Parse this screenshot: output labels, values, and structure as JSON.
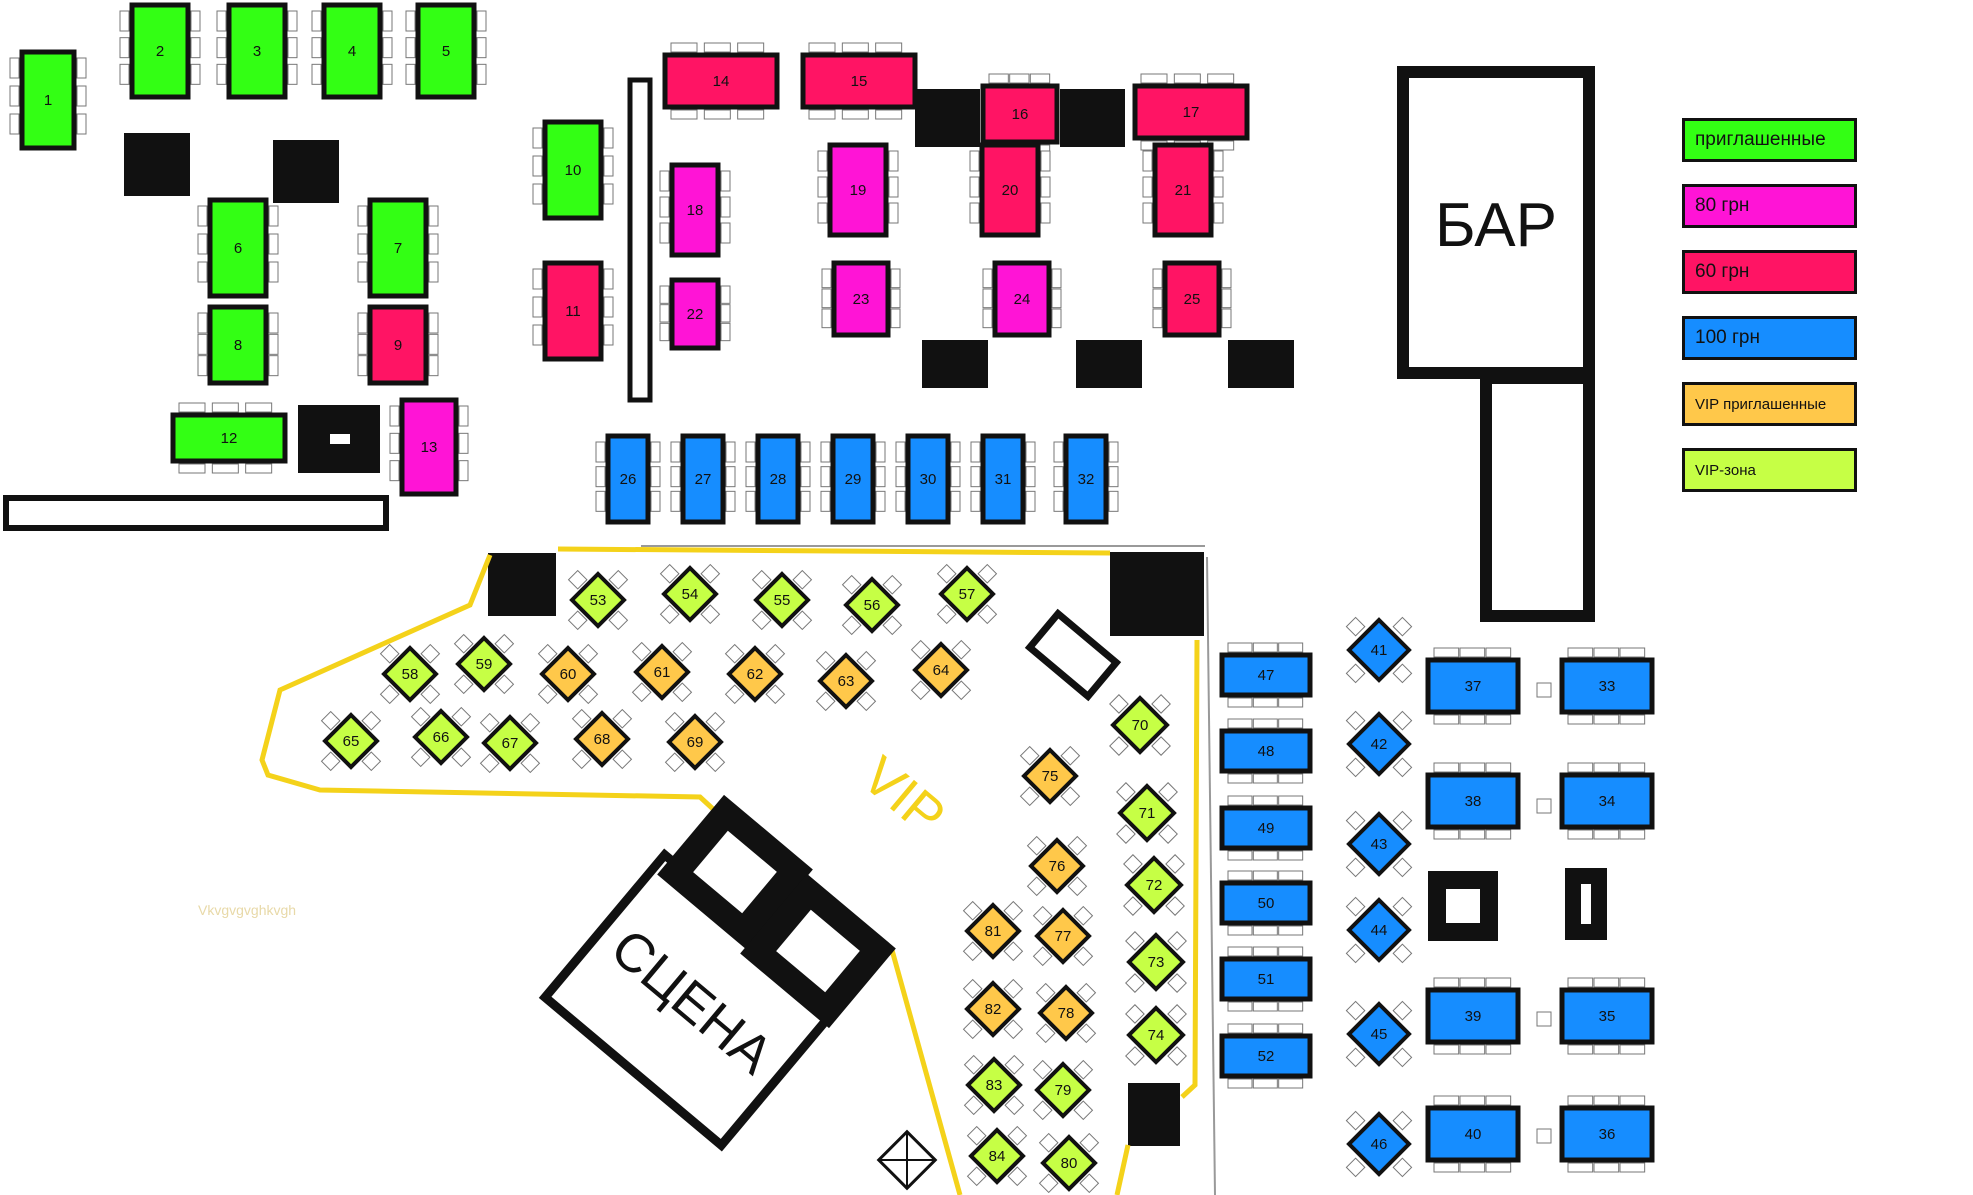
{
  "bar_label": "БАР",
  "stage_label": "СЦЕНА",
  "vip_label": "VIP",
  "watermark": "Vkvgvgvghkvgh",
  "colors": {
    "invited": "#33ff14",
    "price80": "#ff14d6",
    "price60": "#ff1464",
    "price100": "#168dff",
    "vip_invited": "#ffc84a",
    "vip_zone": "#c6ff45",
    "outline": "#111111",
    "vip_border": "#f4d21a"
  },
  "legend": [
    {
      "label": "приглашенные",
      "color": "#33ff14"
    },
    {
      "label": "80 грн",
      "color": "#ff14d6"
    },
    {
      "label": "60 грн",
      "color": "#ff1464"
    },
    {
      "label": "100 грн",
      "color": "#168dff"
    },
    {
      "label": "VIP приглашенные",
      "color": "#ffc84a"
    },
    {
      "label": "VIP-зона",
      "color": "#c6ff45"
    }
  ],
  "tables": [
    {
      "n": "1",
      "cat": "invited"
    },
    {
      "n": "2",
      "cat": "invited"
    },
    {
      "n": "3",
      "cat": "invited"
    },
    {
      "n": "4",
      "cat": "invited"
    },
    {
      "n": "5",
      "cat": "invited"
    },
    {
      "n": "6",
      "cat": "invited"
    },
    {
      "n": "7",
      "cat": "invited"
    },
    {
      "n": "8",
      "cat": "invited"
    },
    {
      "n": "9",
      "cat": "price60"
    },
    {
      "n": "10",
      "cat": "invited"
    },
    {
      "n": "11",
      "cat": "price60"
    },
    {
      "n": "12",
      "cat": "invited"
    },
    {
      "n": "13",
      "cat": "price80"
    },
    {
      "n": "14",
      "cat": "price60"
    },
    {
      "n": "15",
      "cat": "price60"
    },
    {
      "n": "16",
      "cat": "price60"
    },
    {
      "n": "17",
      "cat": "price60"
    },
    {
      "n": "18",
      "cat": "price80"
    },
    {
      "n": "19",
      "cat": "price80"
    },
    {
      "n": "20",
      "cat": "price60"
    },
    {
      "n": "21",
      "cat": "price60"
    },
    {
      "n": "22",
      "cat": "price80"
    },
    {
      "n": "23",
      "cat": "price80"
    },
    {
      "n": "24",
      "cat": "price80"
    },
    {
      "n": "25",
      "cat": "price60"
    },
    {
      "n": "26",
      "cat": "price100"
    },
    {
      "n": "27",
      "cat": "price100"
    },
    {
      "n": "28",
      "cat": "price100"
    },
    {
      "n": "29",
      "cat": "price100"
    },
    {
      "n": "30",
      "cat": "price100"
    },
    {
      "n": "31",
      "cat": "price100"
    },
    {
      "n": "32",
      "cat": "price100"
    },
    {
      "n": "33",
      "cat": "price100"
    },
    {
      "n": "34",
      "cat": "price100"
    },
    {
      "n": "35",
      "cat": "price100"
    },
    {
      "n": "36",
      "cat": "price100"
    },
    {
      "n": "37",
      "cat": "price100"
    },
    {
      "n": "38",
      "cat": "price100"
    },
    {
      "n": "39",
      "cat": "price100"
    },
    {
      "n": "40",
      "cat": "price100"
    },
    {
      "n": "41",
      "cat": "price100"
    },
    {
      "n": "42",
      "cat": "price100"
    },
    {
      "n": "43",
      "cat": "price100"
    },
    {
      "n": "44",
      "cat": "price100"
    },
    {
      "n": "45",
      "cat": "price100"
    },
    {
      "n": "46",
      "cat": "price100"
    },
    {
      "n": "47",
      "cat": "price100"
    },
    {
      "n": "48",
      "cat": "price100"
    },
    {
      "n": "49",
      "cat": "price100"
    },
    {
      "n": "50",
      "cat": "price100"
    },
    {
      "n": "51",
      "cat": "price100"
    },
    {
      "n": "52",
      "cat": "price100"
    },
    {
      "n": "53",
      "cat": "vip_zone"
    },
    {
      "n": "54",
      "cat": "vip_zone"
    },
    {
      "n": "55",
      "cat": "vip_zone"
    },
    {
      "n": "56",
      "cat": "vip_zone"
    },
    {
      "n": "57",
      "cat": "vip_zone"
    },
    {
      "n": "58",
      "cat": "vip_zone"
    },
    {
      "n": "59",
      "cat": "vip_zone"
    },
    {
      "n": "60",
      "cat": "vip_invited"
    },
    {
      "n": "61",
      "cat": "vip_invited"
    },
    {
      "n": "62",
      "cat": "vip_invited"
    },
    {
      "n": "63",
      "cat": "vip_invited"
    },
    {
      "n": "64",
      "cat": "vip_invited"
    },
    {
      "n": "65",
      "cat": "vip_zone"
    },
    {
      "n": "66",
      "cat": "vip_zone"
    },
    {
      "n": "67",
      "cat": "vip_zone"
    },
    {
      "n": "68",
      "cat": "vip_invited"
    },
    {
      "n": "69",
      "cat": "vip_invited"
    },
    {
      "n": "70",
      "cat": "vip_zone"
    },
    {
      "n": "71",
      "cat": "vip_zone"
    },
    {
      "n": "72",
      "cat": "vip_zone"
    },
    {
      "n": "73",
      "cat": "vip_zone"
    },
    {
      "n": "74",
      "cat": "vip_zone"
    },
    {
      "n": "75",
      "cat": "vip_invited"
    },
    {
      "n": "76",
      "cat": "vip_invited"
    },
    {
      "n": "77",
      "cat": "vip_invited"
    },
    {
      "n": "78",
      "cat": "vip_invited"
    },
    {
      "n": "79",
      "cat": "vip_zone"
    },
    {
      "n": "80",
      "cat": "vip_zone"
    },
    {
      "n": "81",
      "cat": "vip_invited"
    },
    {
      "n": "82",
      "cat": "vip_invited"
    },
    {
      "n": "83",
      "cat": "vip_zone"
    },
    {
      "n": "84",
      "cat": "vip_zone"
    }
  ]
}
